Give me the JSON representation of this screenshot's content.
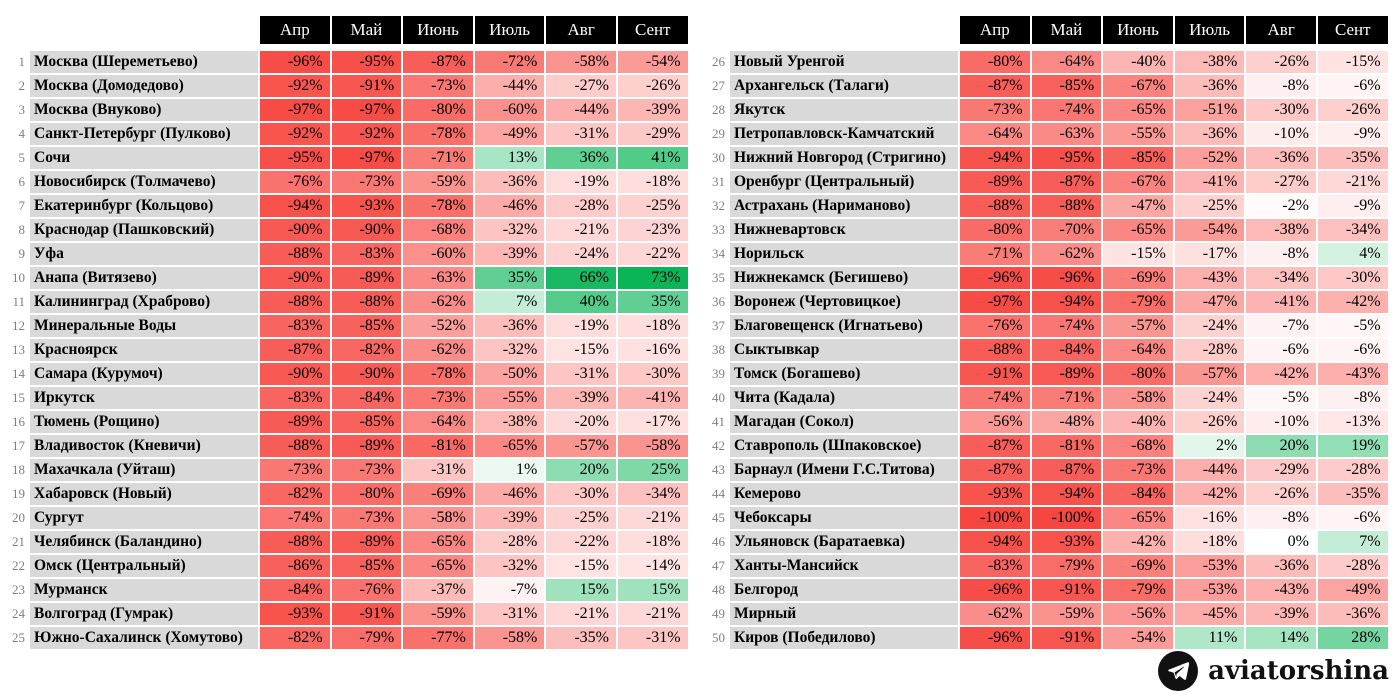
{
  "chart_data": {
    "type": "heatmap",
    "title": "",
    "unit": "%",
    "columns": [
      "Апр",
      "Май",
      "Июнь",
      "Июль",
      "Авг",
      "Сент"
    ],
    "split": 25,
    "color_scale": {
      "negative_full": "#f74640",
      "negative_cap": 100,
      "positive_full": "#0ab558",
      "positive_cap": 73,
      "positive_gamma": 0.6,
      "midpoint_color": "#ffffff"
    },
    "rows": [
      {
        "n": 1,
        "name": "Москва (Шереметьево)",
        "values": [
          -96,
          -95,
          -87,
          -72,
          -58,
          -54
        ]
      },
      {
        "n": 2,
        "name": "Москва (Домодедово)",
        "values": [
          -92,
          -91,
          -73,
          -44,
          -27,
          -26
        ]
      },
      {
        "n": 3,
        "name": "Москва (Внуково)",
        "values": [
          -97,
          -97,
          -80,
          -60,
          -44,
          -39
        ]
      },
      {
        "n": 4,
        "name": "Санкт-Петербург (Пулково)",
        "values": [
          -92,
          -92,
          -78,
          -49,
          -31,
          -29
        ]
      },
      {
        "n": 5,
        "name": "Сочи",
        "values": [
          -95,
          -97,
          -71,
          13,
          36,
          41
        ]
      },
      {
        "n": 6,
        "name": "Новосибирск (Толмачево)",
        "values": [
          -76,
          -73,
          -59,
          -36,
          -19,
          -18
        ]
      },
      {
        "n": 7,
        "name": "Екатеринбург (Кольцово)",
        "values": [
          -94,
          -93,
          -78,
          -46,
          -28,
          -25
        ]
      },
      {
        "n": 8,
        "name": "Краснодар (Пашковский)",
        "values": [
          -90,
          -90,
          -68,
          -32,
          -21,
          -23
        ]
      },
      {
        "n": 9,
        "name": "Уфа",
        "values": [
          -88,
          -83,
          -60,
          -39,
          -24,
          -22
        ]
      },
      {
        "n": 10,
        "name": "Анапа (Витязево)",
        "values": [
          -90,
          -89,
          -63,
          35,
          66,
          73
        ]
      },
      {
        "n": 11,
        "name": "Калининград (Храброво)",
        "values": [
          -88,
          -88,
          -62,
          7,
          40,
          35
        ]
      },
      {
        "n": 12,
        "name": "Минеральные Воды",
        "values": [
          -83,
          -85,
          -52,
          -36,
          -19,
          -18
        ]
      },
      {
        "n": 13,
        "name": "Красноярск",
        "values": [
          -87,
          -82,
          -62,
          -32,
          -15,
          -16
        ]
      },
      {
        "n": 14,
        "name": "Самара (Курумоч)",
        "values": [
          -90,
          -90,
          -78,
          -50,
          -31,
          -30
        ]
      },
      {
        "n": 15,
        "name": "Иркутск",
        "values": [
          -83,
          -84,
          -73,
          -55,
          -39,
          -41
        ]
      },
      {
        "n": 16,
        "name": "Тюмень (Рощино)",
        "values": [
          -89,
          -85,
          -64,
          -38,
          -20,
          -17
        ]
      },
      {
        "n": 17,
        "name": "Владивосток (Кневичи)",
        "values": [
          -88,
          -89,
          -81,
          -65,
          -57,
          -58
        ]
      },
      {
        "n": 18,
        "name": "Махачкала (Уйташ)",
        "values": [
          -73,
          -73,
          -31,
          1,
          20,
          25
        ]
      },
      {
        "n": 19,
        "name": "Хабаровск (Новый)",
        "values": [
          -82,
          -80,
          -69,
          -46,
          -30,
          -34
        ]
      },
      {
        "n": 20,
        "name": "Сургут",
        "values": [
          -74,
          -73,
          -58,
          -39,
          -25,
          -21
        ]
      },
      {
        "n": 21,
        "name": "Челябинск (Баландино)",
        "values": [
          -88,
          -89,
          -65,
          -28,
          -22,
          -18
        ]
      },
      {
        "n": 22,
        "name": "Омск (Центральный)",
        "values": [
          -86,
          -85,
          -65,
          -32,
          -15,
          -14
        ]
      },
      {
        "n": 23,
        "name": "Мурманск",
        "values": [
          -84,
          -76,
          -37,
          -7,
          15,
          15
        ]
      },
      {
        "n": 24,
        "name": "Волгоград (Гумрак)",
        "values": [
          -93,
          -91,
          -59,
          -31,
          -21,
          -21
        ]
      },
      {
        "n": 25,
        "name": "Южно-Сахалинск (Хомутово)",
        "values": [
          -82,
          -79,
          -77,
          -58,
          -35,
          -31
        ]
      },
      {
        "n": 26,
        "name": "Новый Уренгой",
        "values": [
          -80,
          -64,
          -40,
          -38,
          -26,
          -15
        ]
      },
      {
        "n": 27,
        "name": "Архангельск (Талаги)",
        "values": [
          -87,
          -85,
          -67,
          -36,
          -8,
          -6
        ]
      },
      {
        "n": 28,
        "name": "Якутск",
        "values": [
          -73,
          -74,
          -65,
          -51,
          -30,
          -26
        ]
      },
      {
        "n": 29,
        "name": "Петропавловск-Камчатский",
        "values": [
          -64,
          -63,
          -55,
          -36,
          -10,
          -9
        ]
      },
      {
        "n": 30,
        "name": "Нижний Новгород (Стригино)",
        "values": [
          -94,
          -95,
          -85,
          -52,
          -36,
          -35
        ]
      },
      {
        "n": 31,
        "name": "Оренбург (Центральный)",
        "values": [
          -89,
          -87,
          -67,
          -41,
          -27,
          -21
        ]
      },
      {
        "n": 32,
        "name": "Астрахань (Нариманово)",
        "values": [
          -88,
          -88,
          -47,
          -25,
          -2,
          -9
        ]
      },
      {
        "n": 33,
        "name": "Нижневартовск",
        "values": [
          -80,
          -70,
          -65,
          -54,
          -38,
          -34
        ]
      },
      {
        "n": 34,
        "name": "Норильск",
        "values": [
          -71,
          -62,
          -15,
          -17,
          -8,
          4
        ]
      },
      {
        "n": 35,
        "name": "Нижнекамск (Бегишево)",
        "values": [
          -96,
          -96,
          -69,
          -43,
          -34,
          -30
        ]
      },
      {
        "n": 36,
        "name": "Воронеж (Чертовицкое)",
        "values": [
          -97,
          -94,
          -79,
          -47,
          -41,
          -42
        ]
      },
      {
        "n": 37,
        "name": "Благовещенск (Игнатьево)",
        "values": [
          -76,
          -74,
          -57,
          -24,
          -7,
          -5
        ]
      },
      {
        "n": 38,
        "name": "Сыктывкар",
        "values": [
          -88,
          -84,
          -64,
          -28,
          -6,
          -6
        ]
      },
      {
        "n": 39,
        "name": "Томск (Богашево)",
        "values": [
          -91,
          -89,
          -80,
          -57,
          -42,
          -43
        ]
      },
      {
        "n": 40,
        "name": "Чита (Кадала)",
        "values": [
          -74,
          -71,
          -58,
          -24,
          -5,
          -8
        ]
      },
      {
        "n": 41,
        "name": "Магадан (Сокол)",
        "values": [
          -56,
          -48,
          -40,
          -26,
          -10,
          -13
        ]
      },
      {
        "n": 42,
        "name": "Ставрополь (Шпаковское)",
        "values": [
          -87,
          -81,
          -68,
          2,
          20,
          19
        ]
      },
      {
        "n": 43,
        "name": "Барнаул (Имени Г.С.Титова)",
        "values": [
          -87,
          -87,
          -73,
          -44,
          -29,
          -28
        ]
      },
      {
        "n": 44,
        "name": "Кемерово",
        "values": [
          -93,
          -94,
          -84,
          -42,
          -26,
          -35
        ]
      },
      {
        "n": 45,
        "name": "Чебоксары",
        "values": [
          -100,
          -100,
          -65,
          -16,
          -8,
          -6
        ]
      },
      {
        "n": 46,
        "name": "Ульяновск (Баратаевка)",
        "values": [
          -94,
          -93,
          -42,
          -18,
          0,
          7
        ]
      },
      {
        "n": 47,
        "name": "Ханты-Мансийск",
        "values": [
          -83,
          -79,
          -69,
          -53,
          -36,
          -28
        ]
      },
      {
        "n": 48,
        "name": "Белгород",
        "values": [
          -96,
          -91,
          -79,
          -53,
          -43,
          -49
        ]
      },
      {
        "n": 49,
        "name": "Мирный",
        "values": [
          -62,
          -59,
          -56,
          -45,
          -39,
          -36
        ]
      },
      {
        "n": 50,
        "name": "Киров (Победилово)",
        "values": [
          -96,
          -91,
          -54,
          11,
          14,
          28
        ]
      }
    ]
  },
  "footer": {
    "brand": "aviatorshina",
    "icon": "telegram-icon"
  },
  "colors": {
    "name_bg": "#d9d9d9",
    "header_bg": "#000000",
    "header_text": "#ffffff",
    "number_text": "#7f7f7f"
  }
}
